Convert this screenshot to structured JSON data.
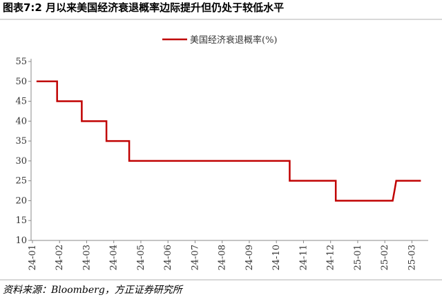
{
  "chart_data": {
    "type": "line",
    "title": "图表7:2 月以来美国经济衰退概率边际提升但仍处于较低水平",
    "source": "资料来源：Bloomberg，方正证券研究所",
    "series": [
      {
        "name": "美国经济衰退概率(%)",
        "color": "#c00000",
        "x": [
          0.15,
          0.91,
          0.91,
          1.82,
          1.82,
          2.73,
          2.73,
          3.57,
          3.57,
          9.49,
          9.49,
          11.19,
          11.19,
          13.29,
          13.37,
          13.42,
          14.33
        ],
        "values": [
          50,
          50,
          45,
          45,
          40,
          40,
          35,
          35,
          30,
          30,
          25,
          25,
          20,
          20,
          23,
          25,
          25
        ]
      }
    ],
    "xlim": [
      -0.05,
      14.6
    ],
    "xticks": [
      {
        "value": 0,
        "label": "24-01"
      },
      {
        "value": 1,
        "label": "24-02"
      },
      {
        "value": 2,
        "label": "24-03"
      },
      {
        "value": 3,
        "label": "24-04"
      },
      {
        "value": 4,
        "label": "24-05"
      },
      {
        "value": 5,
        "label": "24-06"
      },
      {
        "value": 6,
        "label": "24-07"
      },
      {
        "value": 7,
        "label": "24-08"
      },
      {
        "value": 8,
        "label": "24-09"
      },
      {
        "value": 9,
        "label": "24-10"
      },
      {
        "value": 10,
        "label": "24-11"
      },
      {
        "value": 11,
        "label": "24-12"
      },
      {
        "value": 12,
        "label": "25-01"
      },
      {
        "value": 13,
        "label": "25-02"
      },
      {
        "value": 14,
        "label": "25-03"
      }
    ],
    "ylim": [
      10,
      55
    ],
    "yticks": [
      10,
      15,
      20,
      25,
      30,
      35,
      40,
      45,
      50,
      55
    ],
    "grid": false,
    "legend": "top"
  }
}
